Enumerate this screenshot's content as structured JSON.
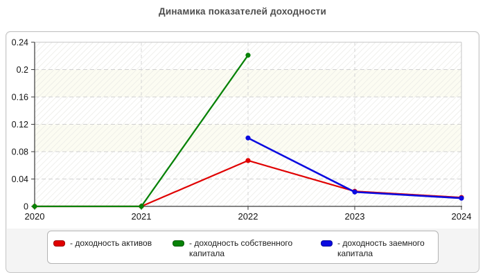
{
  "page": {
    "title": "Динамика показателей доходности"
  },
  "colors": {
    "series_red": "#e00000",
    "series_green": "#078207",
    "series_blue": "#0b0be0",
    "axis": "#3a3a3a",
    "grid": "#d0d0d0",
    "panel_background": "#f4f4f4",
    "panel_border": "#c3c3c3",
    "title_text": "#4d4d4d"
  },
  "chart_data": {
    "type": "line",
    "title": "Динамика показателей доходности",
    "xlabel": "",
    "ylabel": "",
    "x_labels": [
      "2020",
      "2021",
      "2022",
      "2023",
      "2024"
    ],
    "ylim": [
      0,
      0.24
    ],
    "yticks": [
      0,
      0.04,
      0.08,
      0.12,
      0.16,
      0.2,
      0.24
    ],
    "ytick_labels": [
      "0",
      "0.04",
      "0.08",
      "0.12",
      "0.16",
      "0.2",
      "0.24"
    ],
    "grid": "dashed, horizontal and vertical",
    "plot_background": "white with faint diagonal hatching and alternating band tint",
    "legend_position": "bottom",
    "series": [
      {
        "name": "доходность активов",
        "legend_label": "- доходность активов",
        "color": "#e00000",
        "marker": "circle",
        "values": [
          0,
          0,
          0.067,
          0.022,
          0.013
        ]
      },
      {
        "name": "доходность собственного капитала",
        "legend_label": "- доходность собственного капитала",
        "color": "#078207",
        "marker": "circle",
        "markers": [
          "diamond",
          "diamond",
          "circle",
          null,
          null
        ],
        "values": [
          0,
          0,
          0.221,
          null,
          null
        ]
      },
      {
        "name": "доходность заемного капитала",
        "legend_label": "- доходность заемного капитала",
        "color": "#0b0be0",
        "marker": "circle",
        "values": [
          null,
          null,
          0.1,
          0.021,
          0.012
        ]
      }
    ]
  }
}
